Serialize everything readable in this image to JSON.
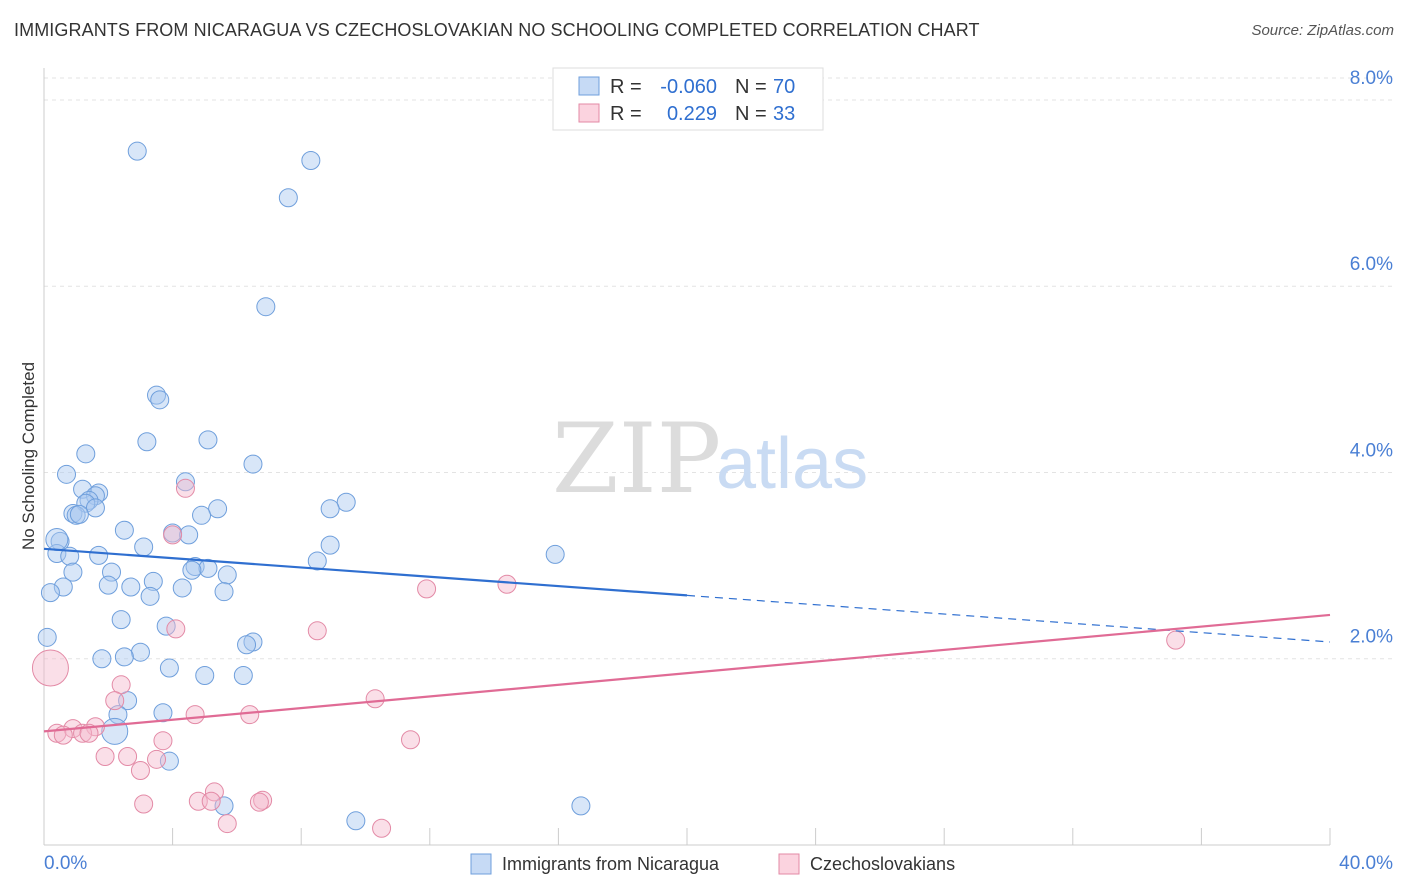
{
  "header": {
    "title": "IMMIGRANTS FROM NICARAGUA VS CZECHOSLOVAKIAN NO SCHOOLING COMPLETED CORRELATION CHART",
    "source": "Source: ZipAtlas.com"
  },
  "watermark": {
    "zip": "ZIP",
    "atlas": "atlas"
  },
  "legend": {
    "rows": [
      {
        "r_label": "R =",
        "r_value": "-0.060",
        "n_label": "N =",
        "n_value": "70",
        "color": "#a9c8ef"
      },
      {
        "r_label": "R =",
        "r_value": "0.229",
        "n_label": "N =",
        "n_value": "33",
        "color": "#f5b8cb"
      }
    ]
  },
  "chart_data": {
    "type": "scatter",
    "title": "IMMIGRANTS FROM NICARAGUA VS CZECHOSLOVAKIAN NO SCHOOLING COMPLETED CORRELATION CHART",
    "ylabel": "No Schooling Completed",
    "xlabel": "",
    "xlim": [
      0,
      40
    ],
    "ylim": [
      0,
      8.3
    ],
    "x_tick_labels": [
      "0.0%",
      "40.0%"
    ],
    "y_ticks": [
      2,
      4,
      6,
      8
    ],
    "y_tick_labels": [
      "2.0%",
      "4.0%",
      "6.0%",
      "8.0%"
    ],
    "grid": true,
    "legend_position": "top-center",
    "series": [
      {
        "name": "Immigrants from Nicaragua",
        "color": "#a9c8ef",
        "stroke": "#6f9fdc",
        "trend": {
          "x": [
            0,
            20
          ],
          "y": [
            3.18,
            2.68
          ],
          "dashed_to": [
            40,
            2.18
          ],
          "color": "#2f6fd0"
        },
        "points": [
          [
            2.9,
            7.45
          ],
          [
            8.3,
            7.35
          ],
          [
            7.6,
            6.95
          ],
          [
            6.9,
            5.78
          ],
          [
            3.5,
            4.83
          ],
          [
            3.6,
            4.78
          ],
          [
            5.1,
            4.35
          ],
          [
            3.2,
            4.33
          ],
          [
            1.3,
            4.2
          ],
          [
            6.5,
            4.09
          ],
          [
            0.7,
            3.98
          ],
          [
            4.4,
            3.9
          ],
          [
            1.2,
            3.82
          ],
          [
            1.7,
            3.78
          ],
          [
            1.6,
            3.75
          ],
          [
            1.4,
            3.7
          ],
          [
            9.4,
            3.68
          ],
          [
            1.3,
            3.67
          ],
          [
            1.6,
            3.62
          ],
          [
            5.4,
            3.61
          ],
          [
            8.9,
            3.61
          ],
          [
            0.9,
            3.56
          ],
          [
            1.0,
            3.54
          ],
          [
            4.9,
            3.54
          ],
          [
            2.5,
            3.38
          ],
          [
            4.0,
            3.35
          ],
          [
            4.5,
            3.33
          ],
          [
            0.5,
            3.26
          ],
          [
            3.1,
            3.2
          ],
          [
            8.9,
            3.22
          ],
          [
            0.4,
            3.13
          ],
          [
            0.8,
            3.1
          ],
          [
            1.7,
            3.11
          ],
          [
            15.9,
            3.12
          ],
          [
            8.5,
            3.05
          ],
          [
            4.7,
            2.99
          ],
          [
            5.1,
            2.97
          ],
          [
            4.6,
            2.95
          ],
          [
            2.1,
            2.93
          ],
          [
            0.9,
            2.93
          ],
          [
            5.7,
            2.9
          ],
          [
            3.4,
            2.83
          ],
          [
            0.6,
            2.77
          ],
          [
            2.0,
            2.79
          ],
          [
            2.7,
            2.77
          ],
          [
            4.3,
            2.76
          ],
          [
            5.6,
            2.72
          ],
          [
            0.2,
            2.71
          ],
          [
            3.3,
            2.67
          ],
          [
            2.4,
            2.42
          ],
          [
            3.8,
            2.35
          ],
          [
            0.1,
            2.23
          ],
          [
            6.5,
            2.18
          ],
          [
            6.3,
            2.15
          ],
          [
            3.0,
            2.07
          ],
          [
            2.5,
            2.02
          ],
          [
            1.8,
            2.0
          ],
          [
            3.9,
            1.9
          ],
          [
            6.2,
            1.82
          ],
          [
            5.0,
            1.82
          ],
          [
            2.6,
            1.55
          ],
          [
            2.3,
            1.4
          ],
          [
            3.7,
            1.42
          ],
          [
            2.2,
            1.22
          ],
          [
            3.9,
            0.9
          ],
          [
            5.6,
            0.42
          ],
          [
            16.7,
            0.42
          ],
          [
            9.7,
            0.26
          ],
          [
            0.4,
            3.28
          ],
          [
            1.1,
            3.55
          ]
        ],
        "point_sizes": {
          "0": 9,
          "68": 11,
          "63": 13
        }
      },
      {
        "name": "Czechoslovakians",
        "color": "#f5b8cb",
        "stroke": "#e38aa6",
        "trend": {
          "x": [
            0,
            40
          ],
          "y": [
            1.22,
            2.47
          ],
          "color": "#e06b95"
        },
        "points": [
          [
            4.4,
            3.83
          ],
          [
            4.0,
            3.33
          ],
          [
            11.9,
            2.75
          ],
          [
            14.4,
            2.8
          ],
          [
            4.1,
            2.32
          ],
          [
            8.5,
            2.3
          ],
          [
            35.2,
            2.2
          ],
          [
            2.4,
            1.72
          ],
          [
            2.2,
            1.55
          ],
          [
            10.3,
            1.57
          ],
          [
            4.7,
            1.4
          ],
          [
            6.4,
            1.4
          ],
          [
            1.6,
            1.27
          ],
          [
            0.9,
            1.25
          ],
          [
            0.4,
            1.2
          ],
          [
            0.6,
            1.18
          ],
          [
            1.2,
            1.2
          ],
          [
            1.4,
            1.2
          ],
          [
            11.4,
            1.13
          ],
          [
            3.7,
            1.12
          ],
          [
            1.9,
            0.95
          ],
          [
            2.6,
            0.95
          ],
          [
            3.5,
            0.92
          ],
          [
            3.0,
            0.8
          ],
          [
            5.3,
            0.57
          ],
          [
            6.8,
            0.48
          ],
          [
            4.8,
            0.47
          ],
          [
            5.2,
            0.47
          ],
          [
            6.7,
            0.46
          ],
          [
            3.1,
            0.44
          ],
          [
            5.7,
            0.23
          ],
          [
            10.5,
            0.18
          ],
          [
            0.2,
            1.9
          ]
        ],
        "point_sizes": {
          "32": 18
        }
      }
    ]
  }
}
